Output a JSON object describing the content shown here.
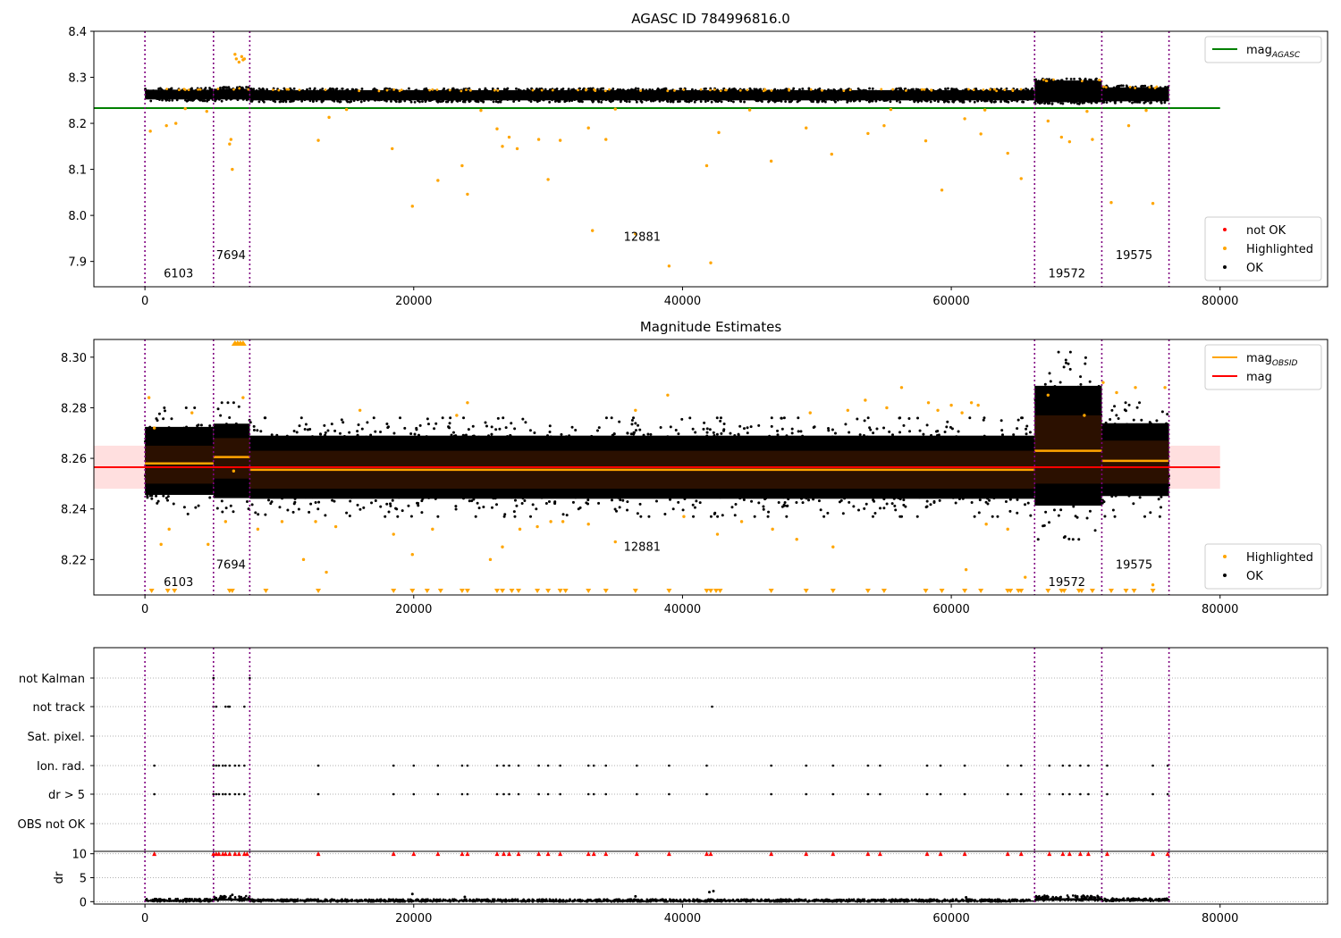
{
  "colors": {
    "ok": "#000000",
    "highlighted": "#ffa500",
    "not_ok": "#ff0000",
    "agasc_line": "#008000",
    "mag_line": "#ff0000",
    "obsid_line": "#ffa500",
    "obsid_boundary": "#800080",
    "mag_band": "#ffc0c0",
    "obsid_band": "#3a1500"
  },
  "chart_data": [
    {
      "type": "scatter",
      "title": "AGASC ID 784996816.0",
      "xlim": [
        -3800,
        88000
      ],
      "ylim": [
        7.845,
        8.4
      ],
      "x_ticks": [
        0,
        20000,
        40000,
        60000,
        80000
      ],
      "x_tick_labels": [
        "0",
        "20000",
        "40000",
        "60000",
        "80000"
      ],
      "y_ticks": [
        7.9,
        8.0,
        8.1,
        8.2,
        8.3,
        8.4
      ],
      "y_tick_labels": [
        "7.9",
        "8.0",
        "8.1",
        "8.2",
        "8.3",
        "8.4"
      ],
      "grid": false,
      "legends": [
        {
          "position": "top-right",
          "entries": [
            {
              "label": "mag",
              "sub": "AGASC",
              "kind": "line",
              "color": "#008000"
            }
          ]
        },
        {
          "position": "bottom-right",
          "entries": [
            {
              "label": "not OK",
              "kind": "dot",
              "color": "#ff0000"
            },
            {
              "label": "Highlighted",
              "kind": "dot",
              "color": "#ffa500"
            },
            {
              "label": "OK",
              "kind": "dot",
              "color": "#000000"
            }
          ]
        }
      ],
      "hlines": [
        {
          "y": 8.233,
          "x": [
            -3800,
            80000
          ],
          "color": "#008000"
        }
      ],
      "obsid_boundaries": [
        0,
        5100,
        7800,
        66200,
        71200,
        76200
      ],
      "obsid_labels": [
        {
          "text": "6103",
          "x": 2500,
          "y": 7.865
        },
        {
          "text": "7694",
          "x": 6400,
          "y": 7.905
        },
        {
          "text": "12881",
          "x": 37000,
          "y": 7.945
        },
        {
          "text": "19572",
          "x": 68600,
          "y": 7.865
        },
        {
          "text": "19575",
          "x": 73600,
          "y": 7.905
        }
      ],
      "ok_band": {
        "segments": [
          {
            "x": [
              0,
              5100
            ],
            "y": [
              8.248,
              8.277
            ]
          },
          {
            "x": [
              5100,
              7800
            ],
            "y": [
              8.248,
              8.279
            ]
          },
          {
            "x": [
              7800,
              66200
            ],
            "y": [
              8.246,
              8.276
            ]
          },
          {
            "x": [
              66200,
              71200
            ],
            "y": [
              8.242,
              8.297
            ]
          },
          {
            "x": [
              71200,
              76200
            ],
            "y": [
              8.244,
              8.282
            ]
          }
        ]
      },
      "highlighted_points": [
        [
          400,
          8.183
        ],
        [
          1600,
          8.195
        ],
        [
          2300,
          8.2
        ],
        [
          4600,
          8.226
        ],
        [
          6400,
          8.165
        ],
        [
          6500,
          8.1
        ],
        [
          6700,
          8.35
        ],
        [
          6800,
          8.34
        ],
        [
          7000,
          8.333
        ],
        [
          7200,
          8.345
        ],
        [
          7300,
          8.338
        ],
        [
          7400,
          8.34
        ],
        [
          6300,
          8.155
        ],
        [
          12900,
          8.163
        ],
        [
          13700,
          8.213
        ],
        [
          18400,
          8.145
        ],
        [
          19900,
          8.02
        ],
        [
          21800,
          8.076
        ],
        [
          23600,
          8.108
        ],
        [
          24000,
          8.046
        ],
        [
          26200,
          8.188
        ],
        [
          26600,
          8.15
        ],
        [
          27100,
          8.17
        ],
        [
          27700,
          8.145
        ],
        [
          29300,
          8.165
        ],
        [
          30000,
          8.078
        ],
        [
          30900,
          8.163
        ],
        [
          33000,
          8.19
        ],
        [
          33300,
          7.967
        ],
        [
          34300,
          8.165
        ],
        [
          36500,
          7.96
        ],
        [
          39000,
          7.89
        ],
        [
          41800,
          8.108
        ],
        [
          42100,
          7.897
        ],
        [
          42700,
          8.18
        ],
        [
          46600,
          8.118
        ],
        [
          49200,
          8.19
        ],
        [
          51100,
          8.133
        ],
        [
          53800,
          8.178
        ],
        [
          55000,
          8.195
        ],
        [
          58100,
          8.162
        ],
        [
          59300,
          8.055
        ],
        [
          61000,
          8.21
        ],
        [
          62200,
          8.177
        ],
        [
          64200,
          8.135
        ],
        [
          65200,
          8.08
        ],
        [
          67200,
          8.205
        ],
        [
          68200,
          8.17
        ],
        [
          68800,
          8.16
        ],
        [
          70500,
          8.165
        ],
        [
          71900,
          8.028
        ],
        [
          73200,
          8.195
        ],
        [
          75000,
          8.026
        ],
        [
          3000,
          8.232
        ],
        [
          15000,
          8.23
        ],
        [
          25000,
          8.228
        ],
        [
          35000,
          8.231
        ],
        [
          45000,
          8.229
        ],
        [
          55500,
          8.23
        ],
        [
          62500,
          8.229
        ],
        [
          70100,
          8.226
        ],
        [
          74500,
          8.228
        ]
      ]
    },
    {
      "type": "scatter",
      "title": "Magnitude Estimates",
      "xlim": [
        -3800,
        88000
      ],
      "ylim": [
        8.206,
        8.307
      ],
      "x_ticks": [
        0,
        20000,
        40000,
        60000,
        80000
      ],
      "x_tick_labels": [
        "0",
        "20000",
        "40000",
        "60000",
        "80000"
      ],
      "y_ticks": [
        8.22,
        8.24,
        8.26,
        8.28,
        8.3
      ],
      "y_tick_labels": [
        "8.22",
        "8.24",
        "8.26",
        "8.28",
        "8.30"
      ],
      "grid": false,
      "legends": [
        {
          "position": "top-right",
          "entries": [
            {
              "label": "mag",
              "sub": "OBSID",
              "kind": "line",
              "color": "#ffa500"
            },
            {
              "label": "mag",
              "kind": "line",
              "color": "#ff0000"
            }
          ]
        },
        {
          "position": "bottom-right",
          "entries": [
            {
              "label": "Highlighted",
              "kind": "dot",
              "color": "#ffa500"
            },
            {
              "label": "OK",
              "kind": "dot",
              "color": "#000000"
            }
          ]
        }
      ],
      "hlines": [
        {
          "y": 8.2565,
          "x": [
            -3800,
            80000
          ],
          "color": "#ff0000"
        }
      ],
      "mag_band": {
        "x": [
          -3800,
          80000
        ],
        "y": [
          8.248,
          8.265
        ]
      },
      "obsid_boundaries": [
        0,
        5100,
        7800,
        66200,
        71200,
        76200
      ],
      "obsid_mags": [
        {
          "x": [
            0,
            5100
          ],
          "mag": 8.258,
          "band": [
            8.25,
            8.265
          ]
        },
        {
          "x": [
            5100,
            7800
          ],
          "mag": 8.2605,
          "band": [
            8.252,
            8.268
          ]
        },
        {
          "x": [
            7800,
            66200
          ],
          "mag": 8.2555,
          "band": [
            8.248,
            8.263
          ]
        },
        {
          "x": [
            66200,
            71200
          ],
          "mag": 8.263,
          "band": [
            8.25,
            8.277
          ]
        },
        {
          "x": [
            71200,
            76200
          ],
          "mag": 8.259,
          "band": [
            8.25,
            8.267
          ]
        }
      ],
      "ok_spread": [
        {
          "x": [
            0,
            5100
          ],
          "y": [
            8.238,
            8.28
          ]
        },
        {
          "x": [
            5100,
            7800
          ],
          "y": [
            8.236,
            8.282
          ]
        },
        {
          "x": [
            7800,
            66200
          ],
          "y": [
            8.237,
            8.276
          ]
        },
        {
          "x": [
            66200,
            71200
          ],
          "y": [
            8.228,
            8.302
          ]
        },
        {
          "x": [
            71200,
            76200
          ],
          "y": [
            8.237,
            8.282
          ]
        }
      ],
      "obsid_labels": [
        {
          "text": "6103",
          "x": 2500,
          "y": 8.2095
        },
        {
          "text": "7694",
          "x": 6400,
          "y": 8.2165
        },
        {
          "text": "12881",
          "x": 37000,
          "y": 8.2235
        },
        {
          "text": "19572",
          "x": 68600,
          "y": 8.2095
        },
        {
          "text": "19575",
          "x": 73600,
          "y": 8.2165
        }
      ],
      "highlighted_points": [
        [
          300,
          8.284
        ],
        [
          700,
          8.272
        ],
        [
          1200,
          8.226
        ],
        [
          1800,
          8.232
        ],
        [
          3500,
          8.278
        ],
        [
          4700,
          8.226
        ],
        [
          6000,
          8.235
        ],
        [
          6600,
          8.255
        ],
        [
          7300,
          8.284
        ],
        [
          8400,
          8.232
        ],
        [
          10200,
          8.235
        ],
        [
          11800,
          8.22
        ],
        [
          12700,
          8.235
        ],
        [
          13500,
          8.215
        ],
        [
          14200,
          8.233
        ],
        [
          16000,
          8.279
        ],
        [
          18500,
          8.23
        ],
        [
          19900,
          8.222
        ],
        [
          21400,
          8.232
        ],
        [
          23200,
          8.277
        ],
        [
          24000,
          8.282
        ],
        [
          25700,
          8.22
        ],
        [
          26600,
          8.225
        ],
        [
          27900,
          8.232
        ],
        [
          29200,
          8.233
        ],
        [
          30200,
          8.235
        ],
        [
          31100,
          8.235
        ],
        [
          33000,
          8.234
        ],
        [
          35000,
          8.227
        ],
        [
          36500,
          8.279
        ],
        [
          38900,
          8.285
        ],
        [
          40100,
          8.237
        ],
        [
          42600,
          8.23
        ],
        [
          44400,
          8.235
        ],
        [
          46700,
          8.232
        ],
        [
          48500,
          8.228
        ],
        [
          49500,
          8.278
        ],
        [
          51200,
          8.225
        ],
        [
          52300,
          8.279
        ],
        [
          53600,
          8.283
        ],
        [
          55200,
          8.28
        ],
        [
          56300,
          8.288
        ],
        [
          58300,
          8.282
        ],
        [
          60000,
          8.281
        ],
        [
          61100,
          8.216
        ],
        [
          62600,
          8.234
        ],
        [
          64200,
          8.232
        ],
        [
          65500,
          8.213
        ],
        [
          67200,
          8.285
        ],
        [
          69900,
          8.277
        ],
        [
          71300,
          8.29
        ],
        [
          72300,
          8.286
        ],
        [
          73700,
          8.288
        ],
        [
          75000,
          8.21
        ],
        [
          75900,
          8.288
        ],
        [
          59000,
          8.279
        ],
        [
          60800,
          8.278
        ],
        [
          61500,
          8.282
        ],
        [
          62000,
          8.281
        ]
      ],
      "below_markers": [
        500,
        1700,
        2200,
        6300,
        6500,
        9000,
        12900,
        18500,
        19900,
        21000,
        22000,
        23600,
        24000,
        26200,
        26600,
        27300,
        27800,
        29200,
        30000,
        30900,
        31300,
        33000,
        34300,
        36500,
        39000,
        41800,
        42100,
        42500,
        42800,
        46600,
        49200,
        51200,
        53800,
        55000,
        58100,
        59300,
        61000,
        62200,
        64200,
        64400,
        65000,
        65200,
        67200,
        68200,
        68400,
        69500,
        69700,
        70500,
        71900,
        73000,
        73600,
        75000
      ],
      "above_markers": [
        6700,
        6900,
        7100,
        7300
      ]
    },
    {
      "type": "scatter",
      "title": "",
      "xlim": [
        -3800,
        88000
      ],
      "x_ticks": [
        0,
        20000,
        40000,
        60000,
        80000
      ],
      "x_tick_labels": [
        "0",
        "20000",
        "40000",
        "60000",
        "80000"
      ],
      "grid": true,
      "categories": [
        "not Kalman",
        "not track",
        "Sat. pixel.",
        "Ion. rad.",
        "dr > 5",
        "OBS not OK"
      ],
      "obsid_boundaries": [
        0,
        5100,
        7800,
        66200,
        71200,
        76200
      ],
      "flags": {
        "not Kalman": [
          5100,
          7800
        ],
        "not track": [
          5100,
          5300,
          6000,
          6200,
          6300,
          7400,
          42200
        ],
        "Sat. pixel.": [],
        "Ion. rad.": [
          700,
          5100,
          5300,
          5500,
          5800,
          6000,
          6300,
          6700,
          7000,
          7400,
          12900,
          18500,
          20000,
          21800,
          23600,
          24000,
          26200,
          26700,
          27100,
          27800,
          29300,
          30000,
          30900,
          33000,
          33400,
          34300,
          36600,
          39000,
          41800,
          46600,
          49200,
          51200,
          53800,
          54700,
          58200,
          59200,
          61000,
          64200,
          65200,
          67300,
          68300,
          68800,
          69600,
          70200,
          71600,
          75000,
          76100
        ],
        "dr > 5": [
          700,
          5100,
          5300,
          5500,
          5800,
          6000,
          6300,
          6700,
          7000,
          7400,
          12900,
          18500,
          20000,
          21800,
          23600,
          24000,
          26200,
          26700,
          27100,
          27800,
          29300,
          30000,
          30900,
          33000,
          33400,
          34300,
          36600,
          39000,
          41800,
          46600,
          49200,
          51200,
          53800,
          54700,
          58200,
          59200,
          61000,
          64200,
          65200,
          67300,
          68300,
          68800,
          69600,
          70200,
          71600,
          75000,
          76100
        ],
        "OBS not OK": []
      }
    },
    {
      "type": "scatter",
      "title": "",
      "ylabel": "dr",
      "xlim": [
        -3800,
        88000
      ],
      "ylim": [
        -0.5,
        10.5
      ],
      "x_ticks": [
        0,
        20000,
        40000,
        60000,
        80000
      ],
      "x_tick_labels": [
        "0",
        "20000",
        "40000",
        "60000",
        "80000"
      ],
      "y_ticks": [
        0,
        5,
        10
      ],
      "y_tick_labels": [
        "0",
        "5",
        "10"
      ],
      "grid": true,
      "obsid_boundaries": [
        0,
        5100,
        7800,
        66200,
        71200,
        76200
      ],
      "dr_ok_segments": [
        {
          "x": [
            0,
            5100
          ],
          "y": [
            0.0,
            0.6
          ]
        },
        {
          "x": [
            5100,
            7800
          ],
          "y": [
            0.2,
            1.2
          ]
        },
        {
          "x": [
            7800,
            66200
          ],
          "y": [
            0.0,
            0.5
          ]
        },
        {
          "x": [
            66200,
            71200
          ],
          "y": [
            0.2,
            1.3
          ]
        },
        {
          "x": [
            71200,
            76200
          ],
          "y": [
            0.1,
            0.7
          ]
        }
      ],
      "dr_scattered_points": [
        [
          19900,
          1.6
        ],
        [
          23800,
          1.0
        ],
        [
          42000,
          2.0
        ],
        [
          42300,
          2.2
        ],
        [
          36500,
          1.1
        ],
        [
          61100,
          0.9
        ],
        [
          6500,
          1.4
        ]
      ],
      "clipped_markers": [
        700,
        5100,
        5300,
        5500,
        5800,
        6000,
        6300,
        6700,
        7000,
        7400,
        7600,
        12900,
        18500,
        20000,
        21800,
        23600,
        24000,
        26200,
        26700,
        27100,
        27800,
        29300,
        30000,
        30900,
        33000,
        33400,
        34300,
        36600,
        39000,
        41800,
        42100,
        46600,
        49200,
        51200,
        53800,
        54700,
        58200,
        59200,
        61000,
        64200,
        65200,
        67300,
        68300,
        68800,
        69600,
        70200,
        71600,
        75000,
        76100
      ]
    }
  ]
}
